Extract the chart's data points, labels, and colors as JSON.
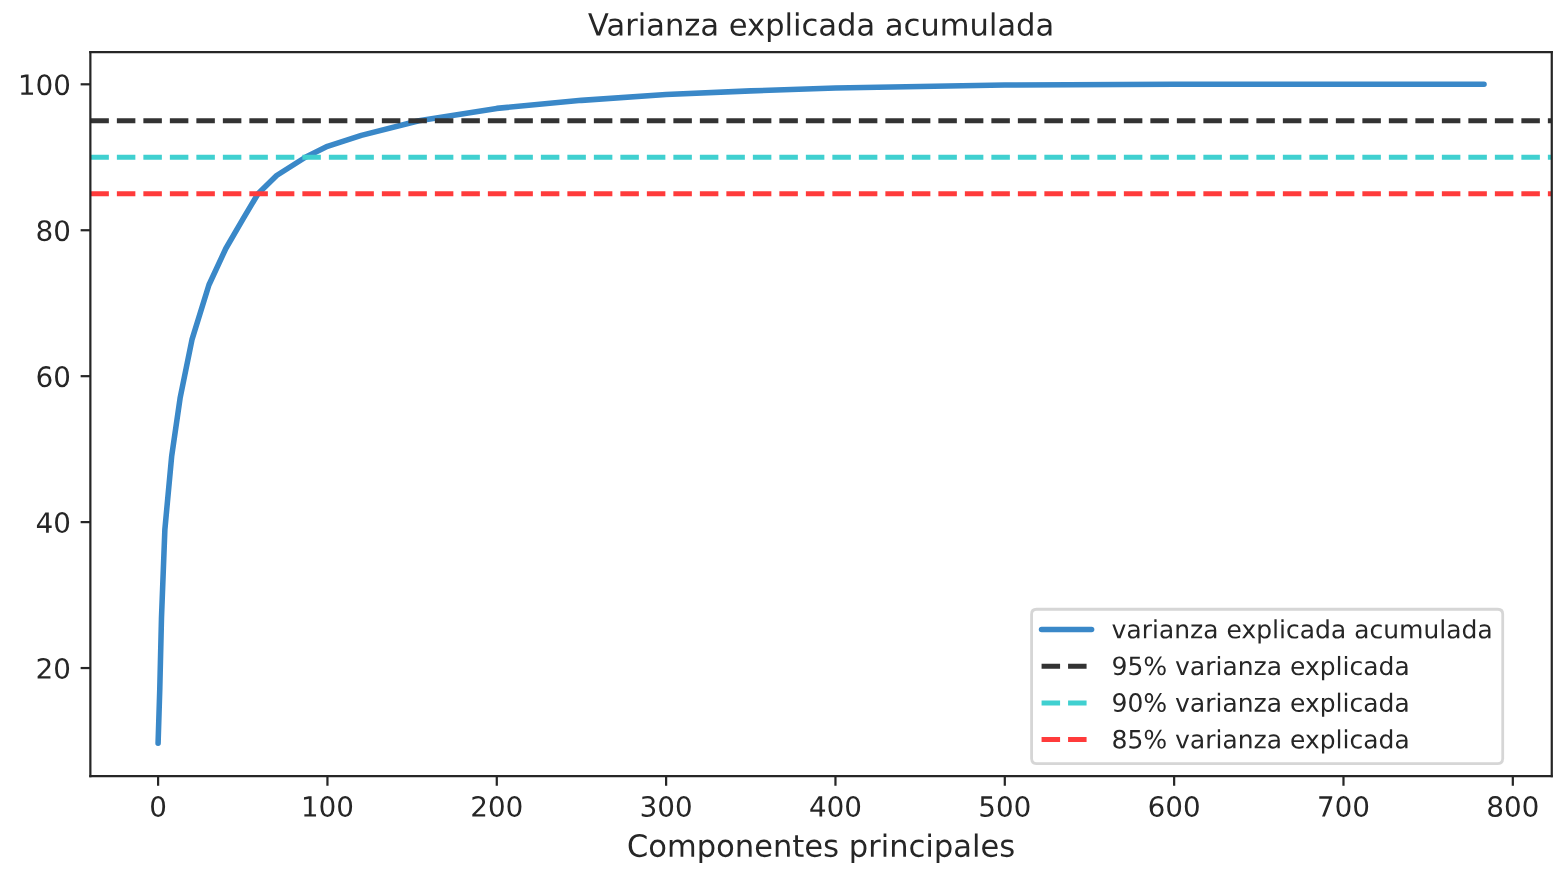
{
  "chart_data": {
    "type": "line",
    "title": "Varianza explicada acumulada",
    "xlabel": "Componentes principales",
    "x": [
      0,
      1,
      2,
      4,
      8,
      13,
      20,
      30,
      40,
      50,
      59,
      70,
      87,
      100,
      120,
      154,
      200,
      250,
      300,
      350,
      400,
      450,
      500,
      600,
      700,
      783
    ],
    "series": [
      {
        "name": "varianza explicada acumulada",
        "color": "#3a88c8",
        "values": [
          9.7,
          17.2,
          26.9,
          39,
          49,
          57,
          65,
          72.5,
          77.5,
          81.5,
          85,
          87.5,
          90,
          91.5,
          93,
          95,
          96.7,
          97.8,
          98.6,
          99.1,
          99.5,
          99.7,
          99.9,
          100,
          100,
          100
        ]
      }
    ],
    "ref_lines": [
      {
        "axis": "y",
        "value": 95,
        "label": "95% varianza explicada",
        "color": "#333333",
        "line_style": "dashed"
      },
      {
        "axis": "y",
        "value": 90,
        "label": "90% varianza explicada",
        "color": "#40d0d0",
        "line_style": "dashed"
      },
      {
        "axis": "y",
        "value": 85,
        "label": "85% varianza explicada",
        "color": "#ff3b3b",
        "line_style": "dashed"
      }
    ],
    "xlim": [
      -40,
      823
    ],
    "ylim": [
      5.2,
      104.4
    ],
    "xticks": [
      0,
      100,
      200,
      300,
      400,
      500,
      600,
      700,
      800
    ],
    "yticks": [
      20,
      40,
      60,
      80,
      100
    ],
    "grid": false,
    "legend": "bottom right",
    "marker": "none",
    "line_style": "solid"
  }
}
